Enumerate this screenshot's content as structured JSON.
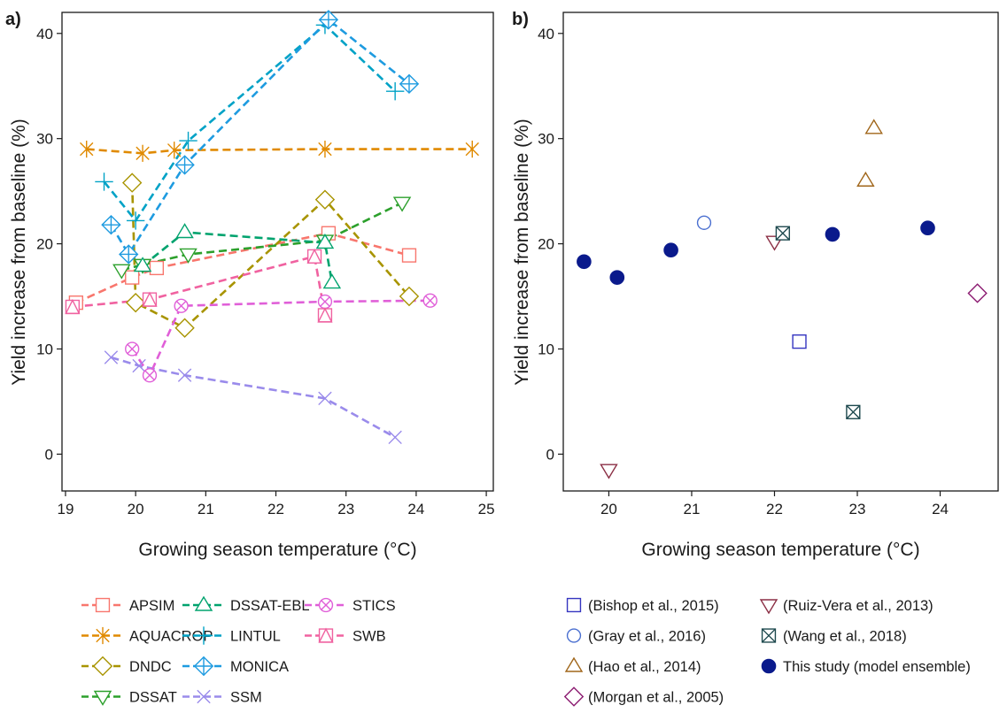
{
  "chart_data": [
    {
      "type": "line",
      "panel_label": "a)",
      "xlabel": "Growing season temperature (°C)",
      "ylabel": "Yield increase from baseline (%)",
      "xlim": [
        18.95,
        25.1
      ],
      "ylim": [
        -3.5,
        42
      ],
      "xticks": [
        19,
        20,
        21,
        22,
        23,
        24,
        25
      ],
      "yticks": [
        0,
        10,
        20,
        30,
        40
      ],
      "grid": false,
      "legend_position": "bottom",
      "series": [
        {
          "name": "APSIM",
          "color": "#F8766D",
          "marker": "square",
          "linestyle": "dashed",
          "points": [
            [
              19.15,
              14.4
            ],
            [
              19.95,
              16.8
            ],
            [
              20.3,
              17.7
            ],
            [
              22.75,
              21.0
            ],
            [
              23.9,
              18.9
            ]
          ]
        },
        {
          "name": "AQUACROP",
          "color": "#E08A00",
          "marker": "asterisk",
          "linestyle": "dashed",
          "points": [
            [
              19.3,
              29.0
            ],
            [
              20.1,
              28.6
            ],
            [
              20.55,
              28.9
            ],
            [
              22.7,
              29.0
            ],
            [
              24.8,
              29.0
            ]
          ]
        },
        {
          "name": "DNDC",
          "color": "#A89400",
          "marker": "diamond",
          "linestyle": "dashed",
          "points": [
            [
              19.95,
              25.8
            ],
            [
              20.0,
              14.4
            ],
            [
              20.7,
              12.0
            ],
            [
              22.7,
              24.2
            ],
            [
              23.9,
              15.0
            ]
          ]
        },
        {
          "name": "DSSAT",
          "color": "#2CA02C",
          "marker": "triangle-down",
          "linestyle": "dashed",
          "points": [
            [
              19.8,
              17.5
            ],
            [
              20.1,
              18.0
            ],
            [
              20.75,
              19.0
            ],
            [
              22.7,
              20.3
            ],
            [
              23.8,
              23.9
            ]
          ]
        },
        {
          "name": "DSSAT-EBL",
          "color": "#00A36E",
          "marker": "triangle-up",
          "linestyle": "dashed",
          "points": [
            [
              20.1,
              17.9
            ],
            [
              20.7,
              21.1
            ],
            [
              22.7,
              20.1
            ],
            [
              22.8,
              16.3
            ]
          ]
        },
        {
          "name": "LINTUL",
          "color": "#00A2C6",
          "marker": "plus",
          "linestyle": "dashed",
          "points": [
            [
              19.55,
              25.9
            ],
            [
              20.0,
              22.2
            ],
            [
              20.75,
              29.8
            ],
            [
              22.7,
              40.8
            ],
            [
              23.7,
              34.5
            ]
          ]
        },
        {
          "name": "MONICA",
          "color": "#1E9BE0",
          "marker": "diamond-plus",
          "linestyle": "dashed",
          "points": [
            [
              19.65,
              21.8
            ],
            [
              19.9,
              19.0
            ],
            [
              20.7,
              27.5
            ],
            [
              22.75,
              41.3
            ],
            [
              23.9,
              35.2
            ]
          ]
        },
        {
          "name": "SSM",
          "color": "#9A8BEB",
          "marker": "cross",
          "linestyle": "dashed",
          "points": [
            [
              19.65,
              9.2
            ],
            [
              20.05,
              8.4
            ],
            [
              20.7,
              7.5
            ],
            [
              22.7,
              5.3
            ],
            [
              23.7,
              1.6
            ]
          ]
        },
        {
          "name": "STICS",
          "color": "#E05FD8",
          "marker": "circle-cross",
          "linestyle": "dashed",
          "points": [
            [
              19.95,
              10.0
            ],
            [
              20.2,
              7.5
            ],
            [
              20.65,
              14.1
            ],
            [
              22.7,
              14.5
            ],
            [
              24.2,
              14.6
            ]
          ]
        },
        {
          "name": "SWB",
          "color": "#F062A0",
          "marker": "square-triangle",
          "linestyle": "dashed",
          "points": [
            [
              19.1,
              14.0
            ],
            [
              20.2,
              14.7
            ],
            [
              22.55,
              18.8
            ],
            [
              22.7,
              13.2
            ]
          ]
        }
      ]
    },
    {
      "type": "scatter",
      "panel_label": "b)",
      "xlabel": "Growing season temperature (°C)",
      "ylabel": "Yield increase from baseline (%)",
      "xlim": [
        19.45,
        24.7
      ],
      "ylim": [
        -3.5,
        42
      ],
      "xticks": [
        20,
        21,
        22,
        23,
        24
      ],
      "yticks": [
        0,
        10,
        20,
        30,
        40
      ],
      "grid": false,
      "legend_position": "bottom",
      "series": [
        {
          "name": "(Bishop et al., 2015)",
          "color": "#3535C0",
          "marker": "square",
          "points": [
            [
              22.3,
              10.7
            ]
          ]
        },
        {
          "name": "(Gray et al., 2016)",
          "color": "#4A6FD0",
          "marker": "circle",
          "points": [
            [
              21.15,
              22.0
            ]
          ]
        },
        {
          "name": "(Hao et al., 2014)",
          "color": "#A0661A",
          "marker": "triangle-up",
          "points": [
            [
              23.1,
              26.0
            ],
            [
              23.2,
              31.0
            ]
          ]
        },
        {
          "name": "(Morgan et al., 2005)",
          "color": "#8B1A70",
          "marker": "diamond",
          "points": [
            [
              24.45,
              15.3
            ]
          ]
        },
        {
          "name": "(Ruiz-Vera et al., 2013)",
          "color": "#8B2F45",
          "marker": "triangle-down",
          "points": [
            [
              20.0,
              -1.5
            ],
            [
              22.0,
              20.2
            ]
          ]
        },
        {
          "name": "(Wang et al., 2018)",
          "color": "#1F4A4F",
          "marker": "square-x",
          "points": [
            [
              22.1,
              21.0
            ],
            [
              22.95,
              4.0
            ]
          ]
        },
        {
          "name": "This study (model ensemble)",
          "color": "#0A1A8C",
          "marker": "filled-circle",
          "points": [
            [
              19.7,
              18.3
            ],
            [
              20.1,
              16.8
            ],
            [
              20.75,
              19.4
            ],
            [
              22.7,
              20.9
            ],
            [
              23.85,
              21.5
            ]
          ]
        }
      ]
    }
  ]
}
